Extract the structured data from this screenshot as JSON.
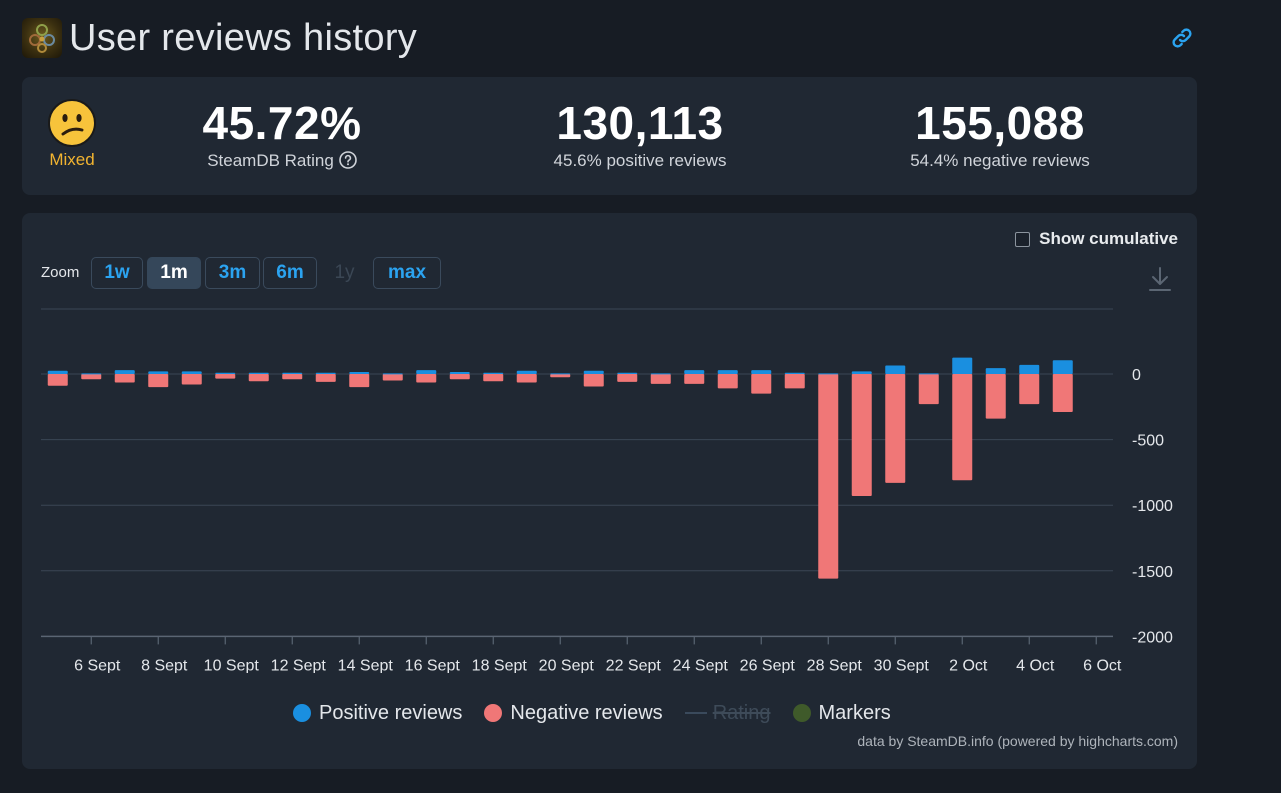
{
  "header": {
    "title": "User reviews history",
    "icons": {
      "game": "game-logo-icon",
      "link": "link-icon"
    }
  },
  "summary": {
    "mood_label": "Mixed",
    "mood_icon": "confused-face-icon",
    "rating_value": "45.72%",
    "rating_label": "SteamDB Rating",
    "positive_value": "130,113",
    "positive_label": "45.6% positive reviews",
    "negative_value": "155,088",
    "negative_label": "54.4% negative reviews"
  },
  "controls": {
    "show_cumulative": "Show cumulative",
    "zoom_label": "Zoom",
    "zoom_buttons": [
      "1w",
      "1m",
      "3m",
      "6m",
      "1y",
      "max"
    ],
    "zoom_active": "1m",
    "zoom_disabled": "1y",
    "download_icon": "download-icon"
  },
  "colors": {
    "positive": "#1a8fe0",
    "negative": "#f07777",
    "markers": "#3f5a2a",
    "mood": "#f2b430",
    "accent": "#2ba3f0"
  },
  "chart_data": {
    "type": "bar",
    "x": [
      "5 Sept",
      "6 Sept",
      "7 Sept",
      "8 Sept",
      "9 Sept",
      "10 Sept",
      "11 Sept",
      "12 Sept",
      "13 Sept",
      "14 Sept",
      "15 Sept",
      "16 Sept",
      "17 Sept",
      "18 Sept",
      "19 Sept",
      "20 Sept",
      "21 Sept",
      "22 Sept",
      "23 Sept",
      "24 Sept",
      "25 Sept",
      "26 Sept",
      "27 Sept",
      "28 Sept",
      "29 Sept",
      "30 Sept",
      "1 Oct",
      "2 Oct",
      "3 Oct",
      "4 Oct",
      "5 Oct",
      "6 Oct"
    ],
    "xticks": [
      "6 Sept",
      "8 Sept",
      "10 Sept",
      "12 Sept",
      "14 Sept",
      "16 Sept",
      "18 Sept",
      "20 Sept",
      "22 Sept",
      "24 Sept",
      "26 Sept",
      "28 Sept",
      "30 Sept",
      "2 Oct",
      "4 Oct",
      "6 Oct"
    ],
    "series": [
      {
        "name": "Positive reviews",
        "values": [
          25,
          5,
          30,
          20,
          20,
          10,
          10,
          10,
          10,
          15,
          5,
          30,
          15,
          10,
          25,
          5,
          25,
          10,
          5,
          30,
          30,
          30,
          10,
          5,
          20,
          65,
          5,
          125,
          45,
          70,
          105,
          0
        ]
      },
      {
        "name": "Negative reviews",
        "values": [
          -90,
          -40,
          -65,
          -100,
          -80,
          -35,
          -55,
          -40,
          -60,
          -100,
          -50,
          -65,
          -40,
          -55,
          -65,
          -25,
          -95,
          -60,
          -75,
          -75,
          -110,
          -150,
          -110,
          -1560,
          -930,
          -830,
          -230,
          -810,
          -340,
          -230,
          -290,
          0
        ]
      }
    ],
    "legend": [
      "Positive reviews",
      "Negative reviews",
      "Rating",
      "Markers"
    ],
    "yticks": [
      0,
      -500,
      -1000,
      -1500,
      -2000
    ],
    "ylim": [
      -2000,
      500
    ],
    "ylabel_position": "right",
    "grid": true,
    "credits": "data by SteamDB.info (powered by highcharts.com)"
  }
}
